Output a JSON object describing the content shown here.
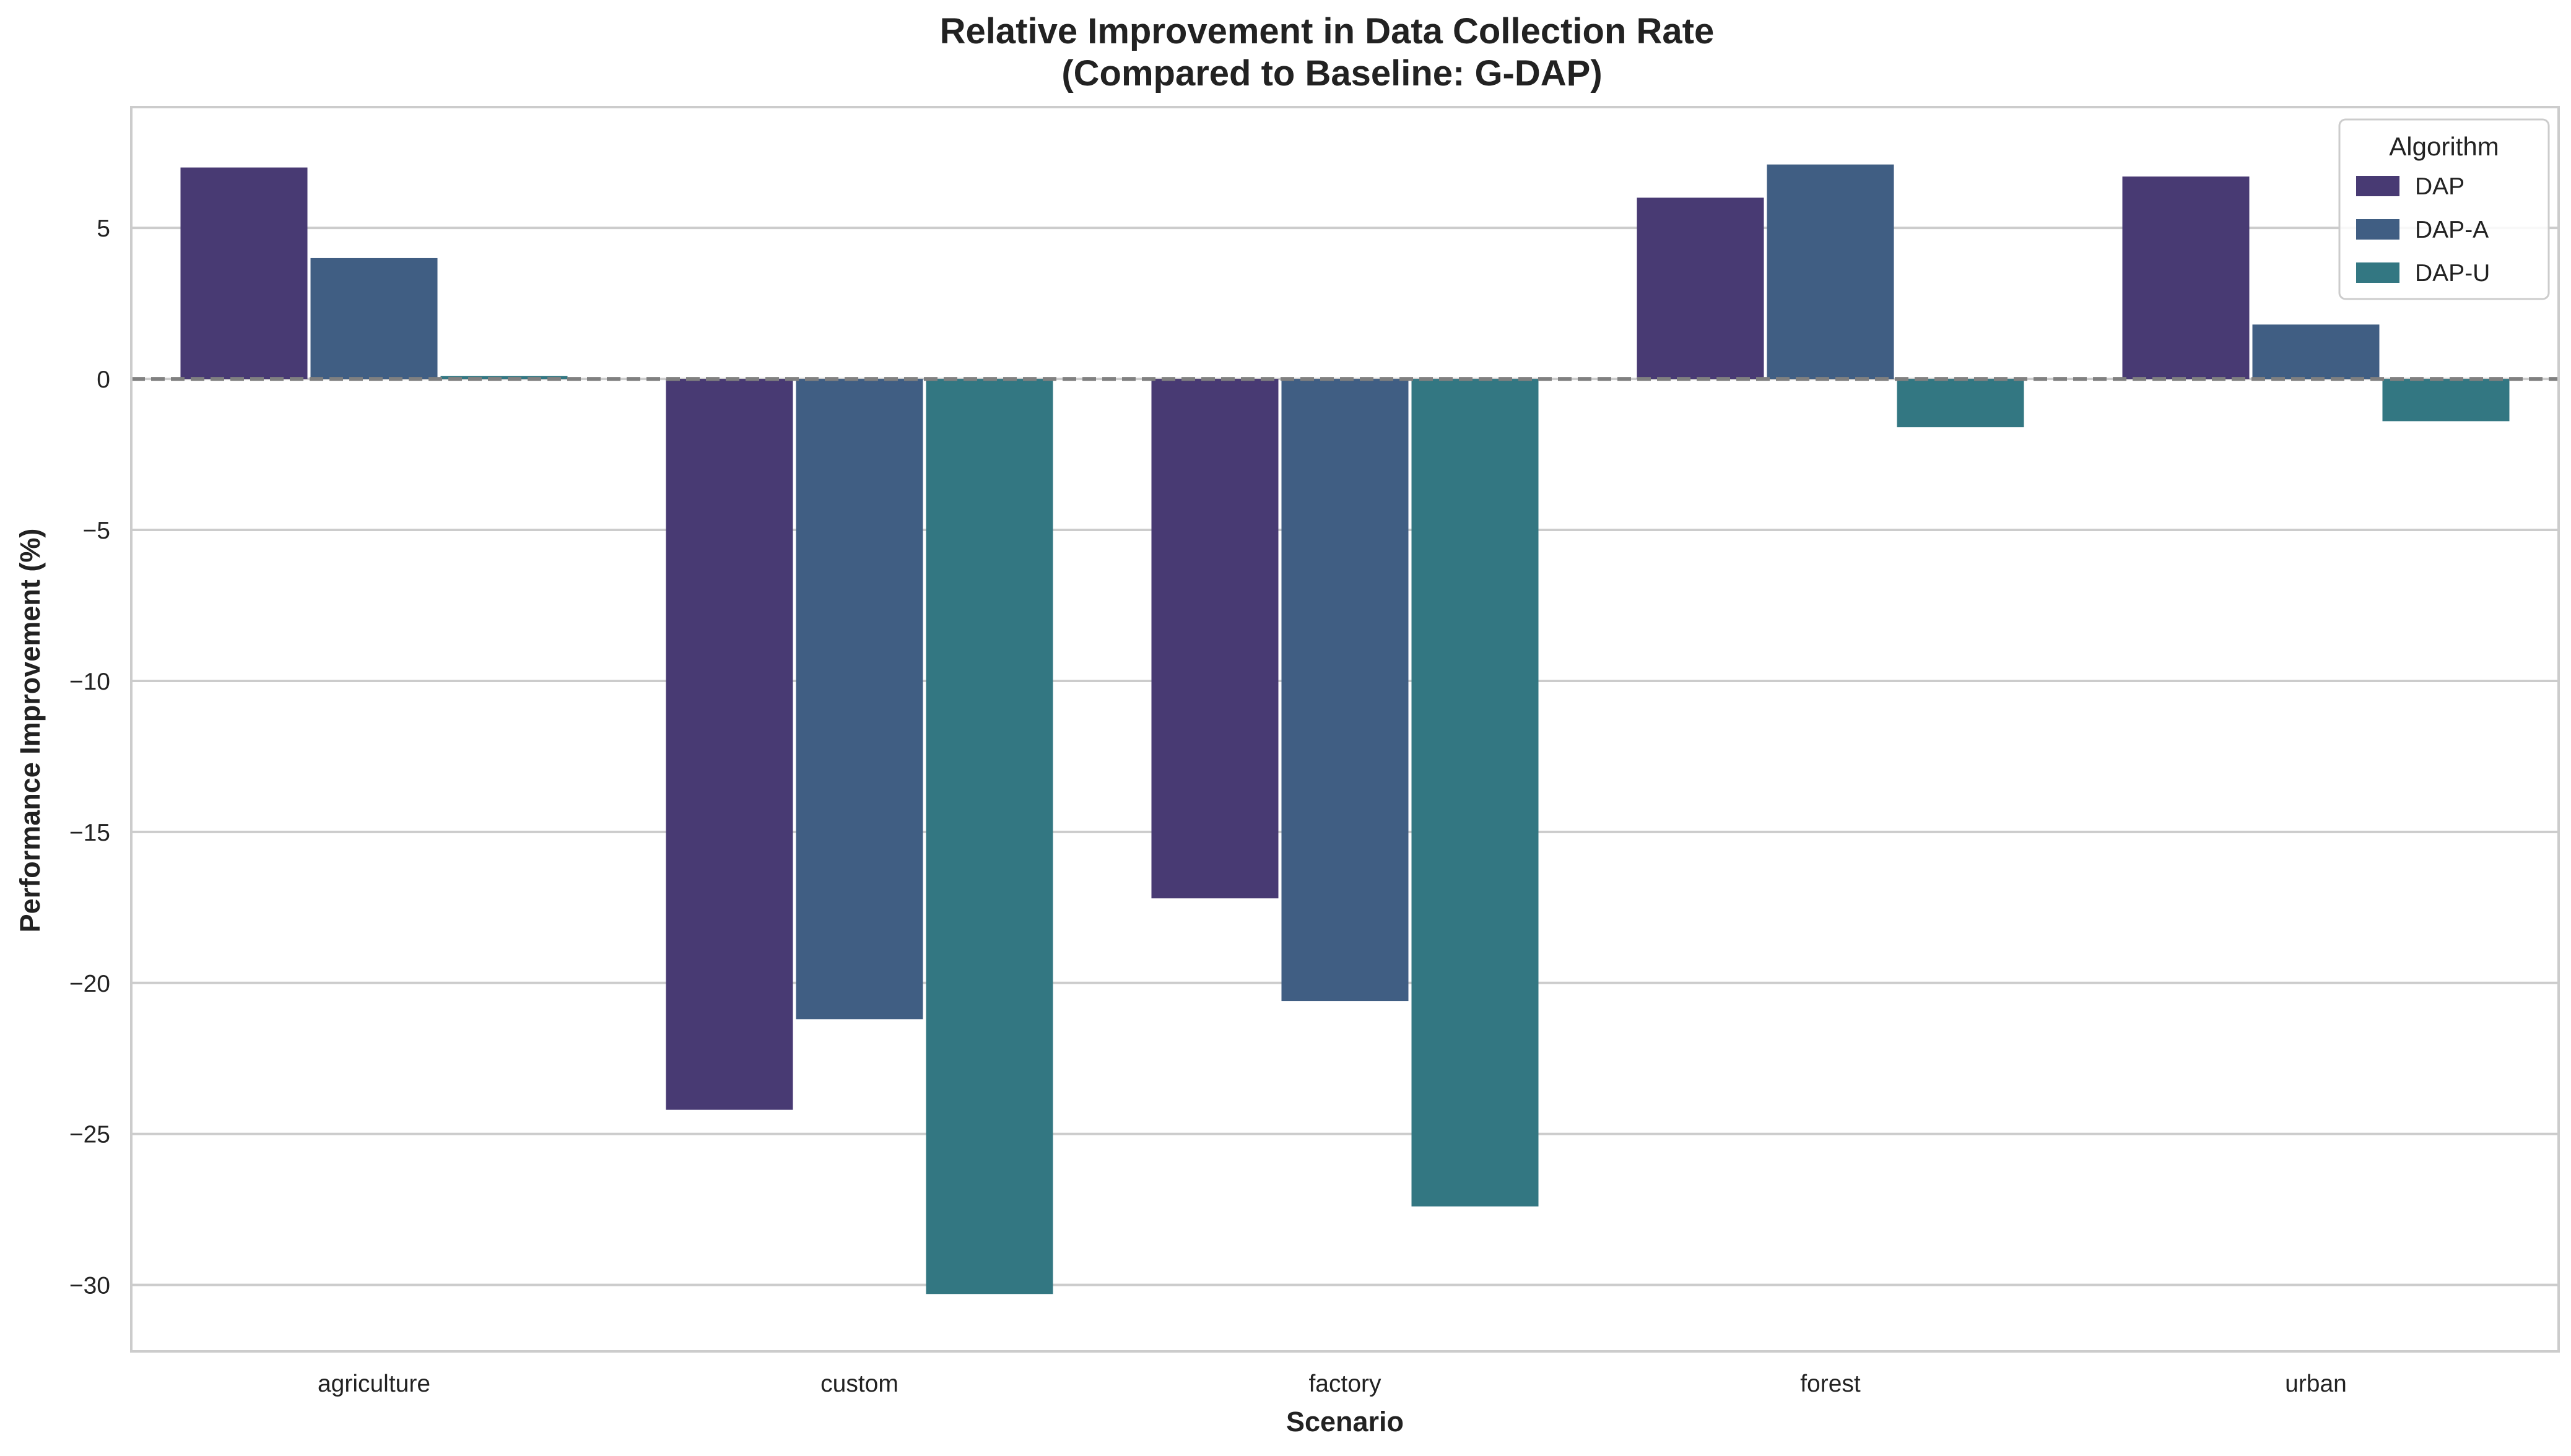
{
  "chart_data": {
    "type": "bar",
    "title": "Relative Improvement in Data Collection Rate\n(Compared to Baseline: G-DAP)",
    "title_lines": [
      "Relative Improvement in Data Collection Rate",
      "(Compared to Baseline: G-DAP)"
    ],
    "xlabel": "Scenario",
    "ylabel": "Performance Improvement (%)",
    "categories": [
      "agriculture",
      "custom",
      "factory",
      "forest",
      "urban"
    ],
    "series": [
      {
        "name": "DAP",
        "color": "#483a73",
        "values": [
          7.0,
          -24.2,
          -17.2,
          6.0,
          6.7
        ]
      },
      {
        "name": "DAP-A",
        "color": "#405e83",
        "values": [
          4.0,
          -21.2,
          -20.6,
          7.1,
          1.8
        ]
      },
      {
        "name": "DAP-U",
        "color": "#337782",
        "values": [
          0.1,
          -30.3,
          -27.4,
          -1.6,
          -1.4
        ]
      }
    ],
    "ylim": [
      -32.2,
      9.0
    ],
    "yticks": [
      5,
      0,
      -5,
      -10,
      -15,
      -20,
      -25,
      -30
    ],
    "ytick_labels": [
      "5",
      "0",
      "−5",
      "−10",
      "−15",
      "−20",
      "−25",
      "−30"
    ],
    "baseline": 0,
    "grid": true,
    "legend": {
      "title": "Algorithm",
      "placement": "top-right"
    }
  }
}
